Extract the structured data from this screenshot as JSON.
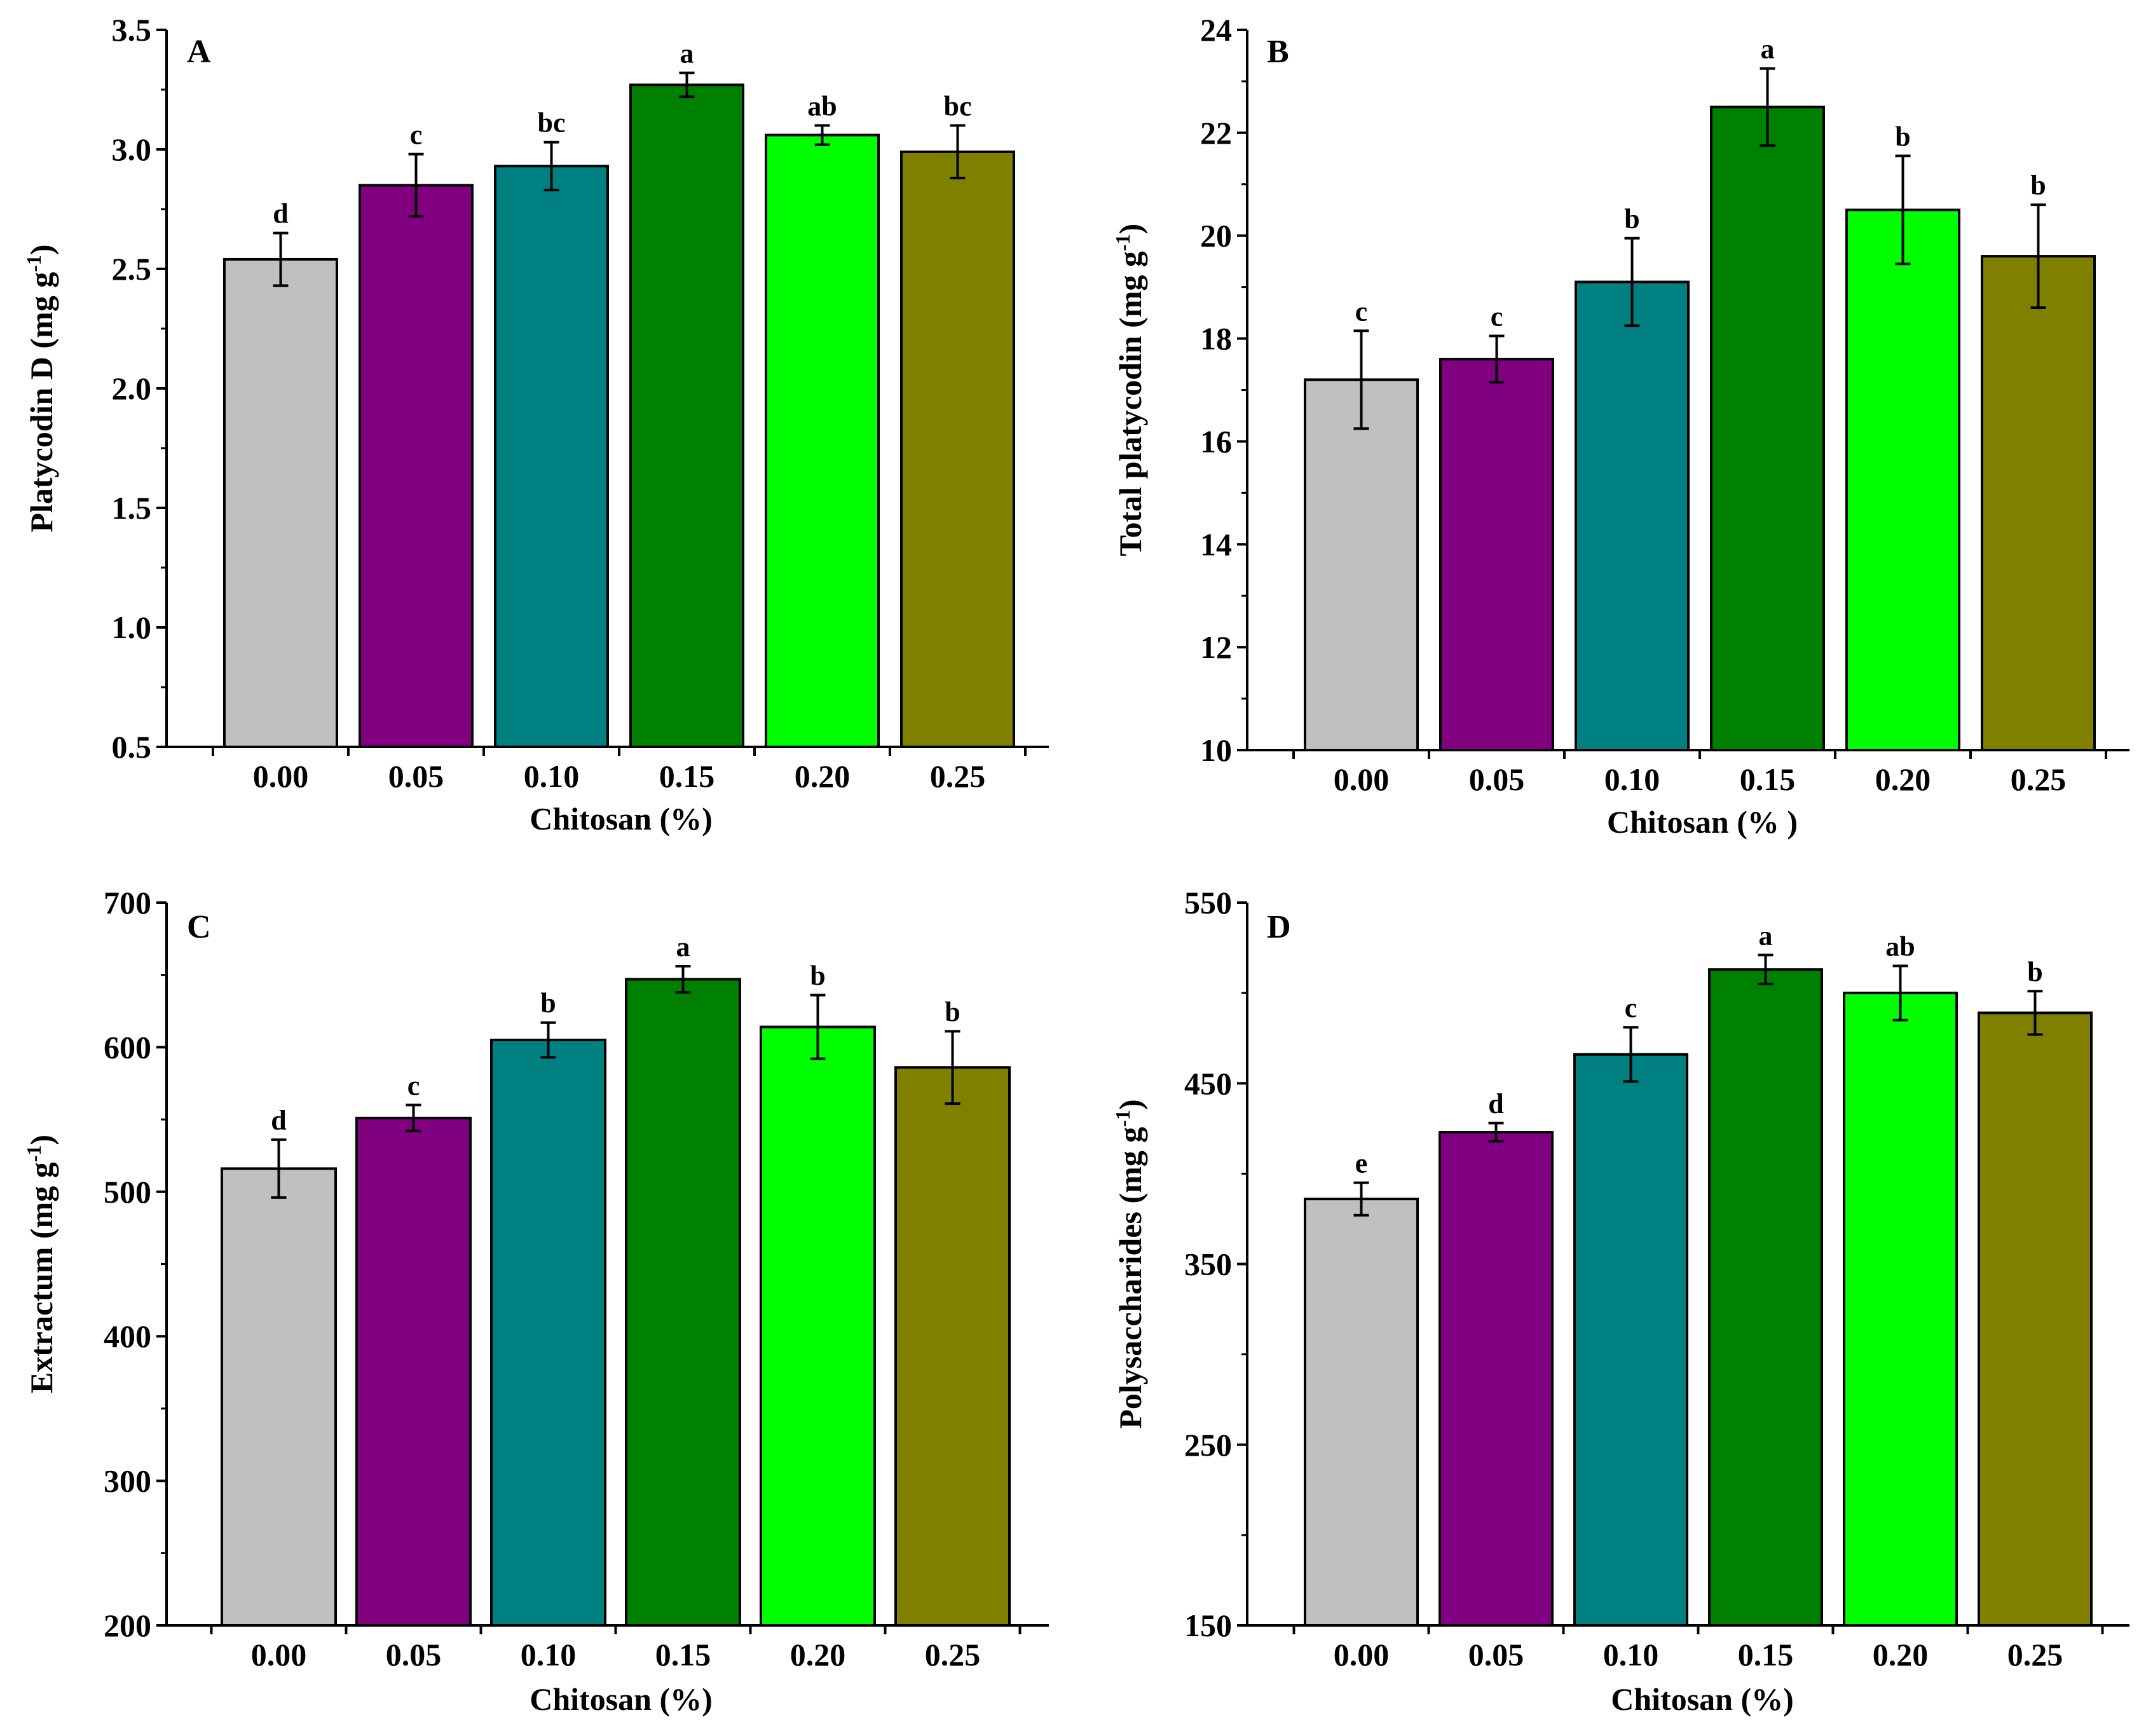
{
  "figure": {
    "colors": [
      "#c0c0c0",
      "#800080",
      "#008080",
      "#008000",
      "#00ff00",
      "#808000"
    ],
    "panels": [
      {
        "panel_label": "A",
        "ylabel": "Platycodin D (mg g",
        "ylabel_sup": "-1",
        "ylabel_close": ")"
      },
      {
        "panel_label": "B",
        "ylabel": "Total platycodin (mg g",
        "ylabel_sup": "-1",
        "ylabel_close": ")"
      },
      {
        "panel_label": "C",
        "ylabel": "Extractum (mg g",
        "ylabel_sup": "-1",
        "ylabel_close": ")"
      },
      {
        "panel_label": "D",
        "ylabel": "Polysaccharides (mg g",
        "ylabel_sup": "-1",
        "ylabel_close": ")"
      }
    ]
  },
  "chart_data": [
    {
      "type": "bar",
      "panel": "A",
      "title": "",
      "xlabel": "Chitosan (%)",
      "ylabel": "Platycodin D (mg g-1)",
      "categories": [
        "0.00",
        "0.05",
        "0.10",
        "0.15",
        "0.20",
        "0.25"
      ],
      "values": [
        2.54,
        2.85,
        2.93,
        3.27,
        3.06,
        2.99
      ],
      "errors": [
        0.11,
        0.13,
        0.1,
        0.05,
        0.04,
        0.11
      ],
      "significance": [
        "d",
        "c",
        "bc",
        "a",
        "ab",
        "bc"
      ],
      "ylim": [
        0.5,
        3.5
      ],
      "yticks": [
        "0.5",
        "1.0",
        "1.5",
        "2.0",
        "2.5",
        "3.0",
        "3.5"
      ],
      "ytick_values": [
        0.5,
        1.0,
        1.5,
        2.0,
        2.5,
        3.0,
        3.5
      ],
      "grid": false
    },
    {
      "type": "bar",
      "panel": "B",
      "title": "",
      "xlabel": "Chitosan (% )",
      "ylabel": "Total platycodin (mg g-1)",
      "categories": [
        "0.00",
        "0.05",
        "0.10",
        "0.15",
        "0.20",
        "0.25"
      ],
      "values": [
        17.2,
        17.6,
        19.1,
        22.5,
        20.5,
        19.6
      ],
      "errors": [
        0.95,
        0.45,
        0.85,
        0.75,
        1.05,
        1.0
      ],
      "significance": [
        "c",
        "c",
        "b",
        "a",
        "b",
        "b"
      ],
      "ylim": [
        10,
        24
      ],
      "yticks": [
        "10",
        "12",
        "14",
        "16",
        "18",
        "20",
        "22",
        "24"
      ],
      "ytick_values": [
        10,
        12,
        14,
        16,
        18,
        20,
        22,
        24
      ],
      "grid": false
    },
    {
      "type": "bar",
      "panel": "C",
      "title": "",
      "xlabel": "Chitosan (%)",
      "ylabel": "Extractum (mg g-1)",
      "categories": [
        "0.00",
        "0.05",
        "0.10",
        "0.15",
        "0.20",
        "0.25"
      ],
      "values": [
        516,
        551,
        605,
        647,
        614,
        586
      ],
      "errors": [
        20,
        9,
        12,
        9,
        22,
        25
      ],
      "significance": [
        "d",
        "c",
        "b",
        "a",
        "b",
        "b"
      ],
      "ylim": [
        200,
        700
      ],
      "yticks": [
        "200",
        "300",
        "400",
        "500",
        "600",
        "700"
      ],
      "ytick_values": [
        200,
        300,
        400,
        500,
        600,
        700
      ],
      "grid": false
    },
    {
      "type": "bar",
      "panel": "D",
      "title": "",
      "xlabel": "Chitosan (%)",
      "ylabel": "Polysaccharides (mg g-1)",
      "categories": [
        "0.00",
        "0.05",
        "0.10",
        "0.15",
        "0.20",
        "0.25"
      ],
      "values": [
        386,
        423,
        466,
        513,
        500,
        489
      ],
      "errors": [
        9,
        5,
        15,
        8,
        15,
        12
      ],
      "significance": [
        "e",
        "d",
        "c",
        "a",
        "ab",
        "b"
      ],
      "ylim": [
        150,
        550
      ],
      "yticks": [
        "150",
        "250",
        "350",
        "450",
        "550"
      ],
      "ytick_values": [
        150,
        250,
        350,
        450,
        550
      ],
      "grid": false
    }
  ]
}
